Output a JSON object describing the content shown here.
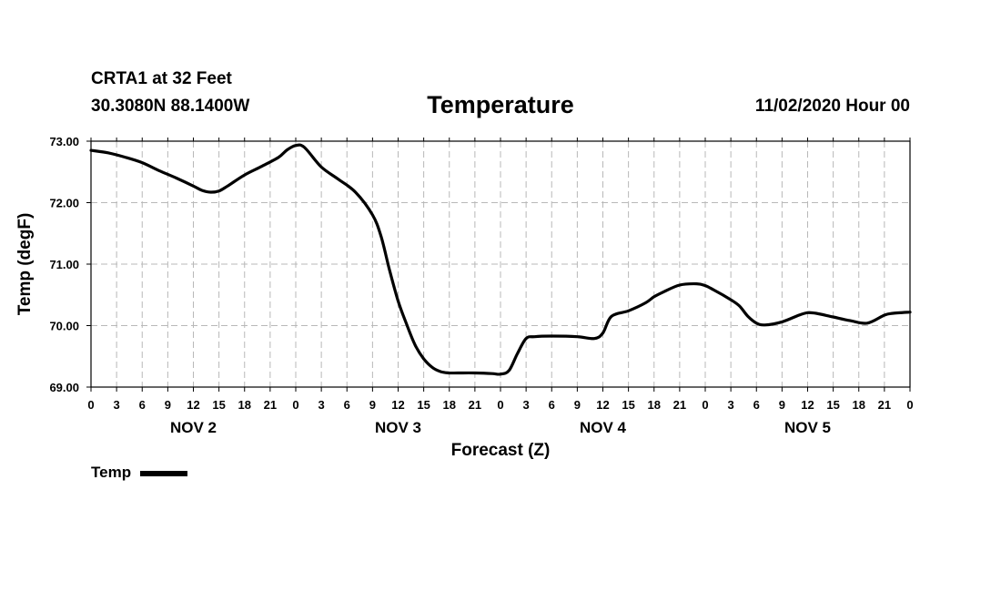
{
  "header": {
    "station": "CRTA1 at 32 Feet",
    "coords": "30.3080N 88.1400W",
    "datetime": "11/02/2020 Hour 00"
  },
  "chart_data": {
    "type": "line",
    "title": "Temperature",
    "xlabel": "Forecast (Z)",
    "ylabel": "Temp (degF)",
    "xlim": [
      0,
      96
    ],
    "ylim": [
      69.0,
      73.0
    ],
    "y_ticks": [
      "69.00",
      "70.00",
      "71.00",
      "72.00",
      "73.00"
    ],
    "y_tick_values": [
      69,
      70,
      71,
      72,
      73
    ],
    "x_tick_hours": [
      0,
      3,
      6,
      9,
      12,
      15,
      18,
      21,
      24,
      27,
      30,
      33,
      36,
      39,
      42,
      45,
      48,
      51,
      54,
      57,
      60,
      63,
      66,
      69,
      72,
      75,
      78,
      81,
      84,
      87,
      90,
      93,
      96
    ],
    "x_tick_labels": [
      "0",
      "3",
      "6",
      "9",
      "12",
      "15",
      "18",
      "21",
      "0",
      "3",
      "6",
      "9",
      "12",
      "15",
      "18",
      "21",
      "0",
      "3",
      "6",
      "9",
      "12",
      "15",
      "18",
      "21",
      "0",
      "3",
      "6",
      "9",
      "12",
      "15",
      "18",
      "21",
      "0"
    ],
    "day_labels": [
      {
        "label": "NOV 2",
        "hour": 12
      },
      {
        "label": "NOV 3",
        "hour": 36
      },
      {
        "label": "NOV 4",
        "hour": 60
      },
      {
        "label": "NOV 5",
        "hour": 84
      }
    ],
    "grid": true,
    "legend": "bottom-left",
    "series": [
      {
        "name": "Temp",
        "color": "#000000",
        "x": [
          0,
          2,
          4,
          6,
          8,
          10,
          12,
          13,
          14,
          15,
          16,
          18,
          20,
          22,
          23,
          24,
          25,
          27,
          29,
          31,
          33,
          34,
          35,
          36,
          37,
          38,
          39,
          40,
          41,
          42,
          43,
          45,
          47,
          48,
          49,
          50,
          51,
          52,
          54,
          57,
          59,
          60,
          61,
          63,
          65,
          66,
          67,
          69,
          71,
          72,
          73,
          75,
          76,
          77,
          78,
          79,
          81,
          83,
          84,
          85,
          87,
          89,
          91,
          93,
          94,
          96
        ],
        "values": [
          72.85,
          72.81,
          72.74,
          72.65,
          72.52,
          72.4,
          72.27,
          72.2,
          72.17,
          72.19,
          72.27,
          72.45,
          72.59,
          72.74,
          72.86,
          72.93,
          72.9,
          72.58,
          72.38,
          72.17,
          71.8,
          71.45,
          70.9,
          70.4,
          70.02,
          69.68,
          69.46,
          69.32,
          69.25,
          69.23,
          69.23,
          69.23,
          69.22,
          69.21,
          69.27,
          69.55,
          69.79,
          69.82,
          69.83,
          69.82,
          69.79,
          69.88,
          70.15,
          70.24,
          70.37,
          70.47,
          70.54,
          70.66,
          70.68,
          70.65,
          70.58,
          70.42,
          70.32,
          70.15,
          70.04,
          70.01,
          70.06,
          70.17,
          70.21,
          70.2,
          70.14,
          70.08,
          70.04,
          70.17,
          70.2,
          70.22
        ]
      }
    ]
  }
}
